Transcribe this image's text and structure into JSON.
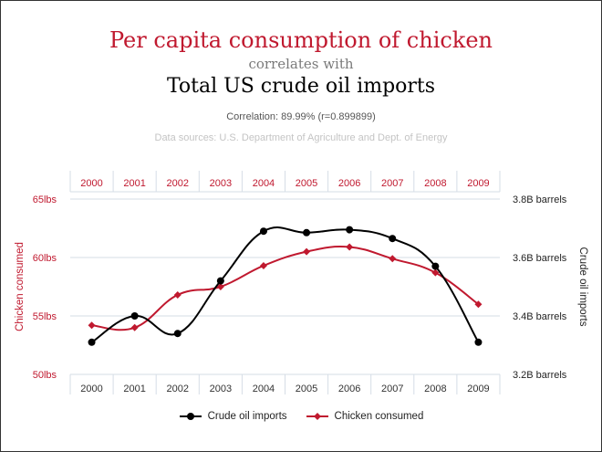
{
  "header": {
    "title_line1": "Per capita consumption of chicken",
    "title_connector": "correlates with",
    "title_line2": "Total US crude oil imports",
    "correlation": "Correlation: 89.99% (r=0.899899)",
    "sources": "Data sources: U.S. Department of Agriculture and Dept. of Energy"
  },
  "colors": {
    "chicken": "#c0192f",
    "oil": "#000000",
    "left_axis": "#c0192f",
    "right_axis": "#222222",
    "grid": "#d6dde6"
  },
  "chart_data": {
    "type": "line",
    "x": [
      "2000",
      "2001",
      "2002",
      "2003",
      "2004",
      "2005",
      "2006",
      "2007",
      "2008",
      "2009"
    ],
    "y_left": {
      "label": "Chicken consumed",
      "ticks": [
        "50lbs",
        "55lbs",
        "60lbs",
        "65lbs"
      ],
      "range": [
        50,
        65
      ]
    },
    "y_right": {
      "label": "Crude oil imports",
      "ticks": [
        "3.2B barrels",
        "3.4B barrels",
        "3.6B barrels",
        "3.8B barrels"
      ],
      "range": [
        3.2,
        3.8
      ]
    },
    "series": [
      {
        "name": "Crude oil imports",
        "axis": "right",
        "marker": "circle",
        "color": "#000000",
        "values": [
          3.31,
          3.4,
          3.34,
          3.52,
          3.69,
          3.685,
          3.695,
          3.665,
          3.57,
          3.31
        ]
      },
      {
        "name": "Chicken consumed",
        "axis": "left",
        "marker": "diamond",
        "color": "#c0192f",
        "values": [
          54.2,
          54.0,
          56.8,
          57.5,
          59.3,
          60.5,
          60.9,
          59.9,
          58.7,
          56.0
        ]
      }
    ],
    "grid": true,
    "legend_position": "bottom"
  }
}
